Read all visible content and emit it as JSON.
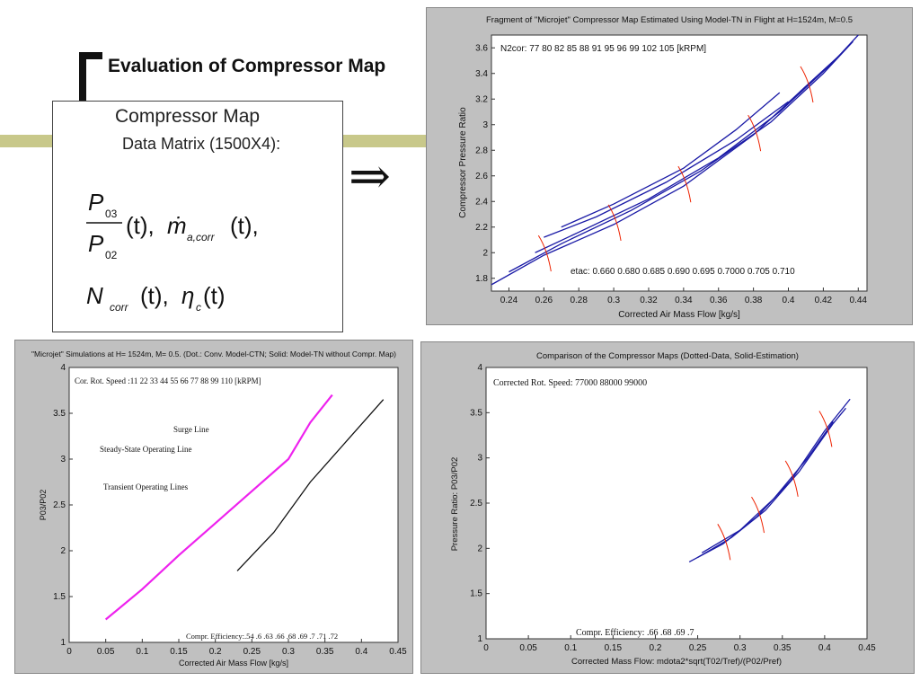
{
  "slide": {
    "title": "Evaluation of Compressor Map",
    "box_line1": "Compressor Map",
    "box_line2": "Data Matrix (1500X4):",
    "arrow_symbol": "⇒",
    "formula": {
      "ratio_num": "P",
      "ratio_num_sub": "03",
      "ratio_den": "P",
      "ratio_den_sub": "02",
      "t": "(t),",
      "mdot": "ṁ",
      "mdot_sub": "a,corr",
      "n": "N",
      "n_sub": "corr",
      "eta": "η",
      "eta_sub": "c",
      "t_end": "(t)"
    }
  },
  "chart_data": [
    {
      "type": "line",
      "title": "Fragment of \"Microjet\" Compressor Map Estimated Using Model-TN in Flight at H=1524m, M=0.5",
      "xlabel": "Corrected Air Mass Flow [kg/s]",
      "ylabel": "Compressor Pressure Ratio",
      "xlim": [
        0.23,
        0.445
      ],
      "ylim": [
        1.7,
        3.7
      ],
      "xticks": [
        0.24,
        0.26,
        0.28,
        0.3,
        0.32,
        0.34,
        0.36,
        0.38,
        0.4,
        0.42,
        0.44
      ],
      "yticks": [
        1.8,
        2,
        2.2,
        2.4,
        2.6,
        2.8,
        3,
        3.2,
        3.4,
        3.6
      ],
      "annotations": [
        "N2cor: 77 80 82 85 88 91 95 96 99 102 105 [kRPM]",
        "etac: 0.660 0.680 0.685 0.690 0.695 0.7000 0.705 0.710"
      ],
      "colors": {
        "speed_lines": "#1a1aa6",
        "efficiency_lines": "#ee2200"
      },
      "series": [
        {
          "values": [
            [
              0.23,
              1.75
            ],
            [
              0.26,
              1.98
            ],
            [
              0.3,
              2.22
            ],
            [
              0.34,
              2.52
            ],
            [
              0.38,
              2.92
            ],
            [
              0.41,
              3.3
            ],
            [
              0.43,
              3.55
            ]
          ]
        },
        {
          "values": [
            [
              0.24,
              1.85
            ],
            [
              0.27,
              2.07
            ],
            [
              0.31,
              2.33
            ],
            [
              0.35,
              2.64
            ],
            [
              0.39,
              3.02
            ],
            [
              0.42,
              3.4
            ],
            [
              0.437,
              3.65
            ]
          ]
        },
        {
          "values": [
            [
              0.255,
              2.0
            ],
            [
              0.28,
              2.16
            ],
            [
              0.32,
              2.42
            ],
            [
              0.36,
              2.74
            ],
            [
              0.395,
              3.1
            ],
            [
              0.425,
              3.48
            ],
            [
              0.44,
              3.7
            ]
          ]
        },
        {
          "values": [
            [
              0.26,
              2.12
            ],
            [
              0.29,
              2.28
            ],
            [
              0.33,
              2.55
            ],
            [
              0.37,
              2.88
            ],
            [
              0.4,
              3.18
            ]
          ]
        },
        {
          "values": [
            [
              0.27,
              2.2
            ],
            [
              0.3,
              2.38
            ],
            [
              0.34,
              2.66
            ],
            [
              0.37,
              2.96
            ],
            [
              0.395,
              3.25
            ]
          ]
        }
      ]
    },
    {
      "type": "line",
      "title": "\"Microjet\" Simulations at H= 1524m, M= 0.5. (Dot.: Conv. Model-CTN; Solid: Model-TN without Compr. Map)",
      "xlabel": "Corrected Air Mass Flow [kg/s]",
      "ylabel": "P03/P02",
      "xlim": [
        0,
        0.45
      ],
      "ylim": [
        1,
        4
      ],
      "xticks": [
        0,
        0.05,
        0.1,
        0.15,
        0.2,
        0.25,
        0.3,
        0.35,
        0.4,
        0.45
      ],
      "yticks": [
        1,
        1.5,
        2,
        2.5,
        3,
        3.5,
        4
      ],
      "annotations": [
        "Cor. Rot. Speed :11 22 33 44 55 66 77 88 99 110 [kRPM]",
        "Surge Line",
        "Steady-State Operating Line",
        "Transient Operating Lines",
        "Compr. Efficiency:.54 .6 .63 .66 .68 .69 .7 .71 .72"
      ],
      "colors": {
        "surge_line": "#ee22ee",
        "speed_lines": "#1a3acc",
        "operating_lines": "#111111"
      },
      "series": [
        {
          "name": "Surge Line",
          "values": [
            [
              0.05,
              1.25
            ],
            [
              0.1,
              1.58
            ],
            [
              0.15,
              1.95
            ],
            [
              0.2,
              2.3
            ],
            [
              0.25,
              2.65
            ],
            [
              0.3,
              3.0
            ],
            [
              0.33,
              3.4
            ],
            [
              0.36,
              3.7
            ]
          ]
        },
        {
          "name": "Steady-State Operating Line",
          "values": [
            [
              0.23,
              1.78
            ],
            [
              0.28,
              2.2
            ],
            [
              0.33,
              2.75
            ],
            [
              0.38,
              3.2
            ],
            [
              0.43,
              3.65
            ]
          ]
        }
      ]
    },
    {
      "type": "line",
      "title": "Comparison of the Compressor Maps (Dotted-Data, Solid-Estimation)",
      "xlabel": "Corrected Mass Flow: mdota2*sqrt(T02/Tref)/(P02/Pref)",
      "ylabel": "Pressure Ratio: P03/P02",
      "xlim": [
        0,
        0.45
      ],
      "ylim": [
        1,
        4
      ],
      "xticks": [
        0,
        0.05,
        0.1,
        0.15,
        0.2,
        0.25,
        0.3,
        0.35,
        0.4,
        0.45
      ],
      "yticks": [
        1,
        1.5,
        2,
        2.5,
        3,
        3.5,
        4
      ],
      "annotations": [
        "Corrected Rot. Speed: 77000 88000 99000",
        "Compr. Efficiency: .66 .68 .69 .7"
      ],
      "colors": {
        "estimation": "#1a1aa6",
        "data": "#333333",
        "efficiency_lines": "#ee2200"
      },
      "series": [
        {
          "values": [
            [
              0.24,
              1.85
            ],
            [
              0.28,
              2.05
            ],
            [
              0.32,
              2.35
            ],
            [
              0.36,
              2.75
            ],
            [
              0.4,
              3.3
            ],
            [
              0.43,
              3.65
            ]
          ]
        },
        {
          "values": [
            [
              0.25,
              1.9
            ],
            [
              0.29,
              2.12
            ],
            [
              0.33,
              2.42
            ],
            [
              0.37,
              2.85
            ],
            [
              0.41,
              3.38
            ],
            [
              0.425,
              3.55
            ]
          ]
        },
        {
          "values": [
            [
              0.255,
              1.95
            ],
            [
              0.3,
              2.2
            ],
            [
              0.34,
              2.55
            ],
            [
              0.38,
              3.0
            ],
            [
              0.41,
              3.4
            ]
          ]
        }
      ]
    }
  ]
}
